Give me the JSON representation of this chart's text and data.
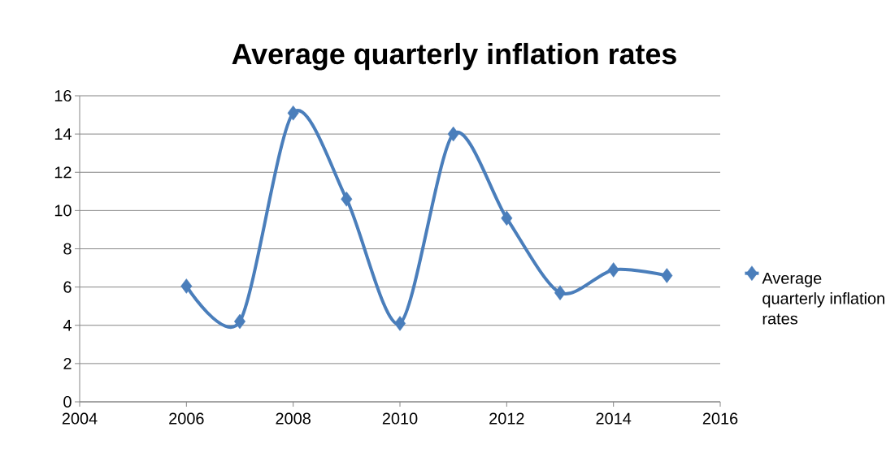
{
  "chart_data": {
    "type": "line",
    "title": "Average quarterly inflation rates",
    "x": [
      2006,
      2007,
      2008,
      2009,
      2010,
      2011,
      2012,
      2013,
      2014,
      2015
    ],
    "series": [
      {
        "name": "Average quarterly inflation rates",
        "color": "#4a7ebb",
        "values": [
          6.05,
          4.2,
          15.1,
          10.6,
          4.1,
          14.0,
          9.6,
          5.7,
          6.9,
          6.6
        ]
      }
    ],
    "xlim": [
      2004,
      2016
    ],
    "xticks": [
      2004,
      2006,
      2008,
      2010,
      2012,
      2014,
      2016
    ],
    "ylim": [
      0,
      16
    ],
    "yticks": [
      0,
      2,
      4,
      6,
      8,
      10,
      12,
      14,
      16
    ],
    "grid": "y",
    "legend": "right",
    "marker": "diamond",
    "line_style": "solid"
  }
}
